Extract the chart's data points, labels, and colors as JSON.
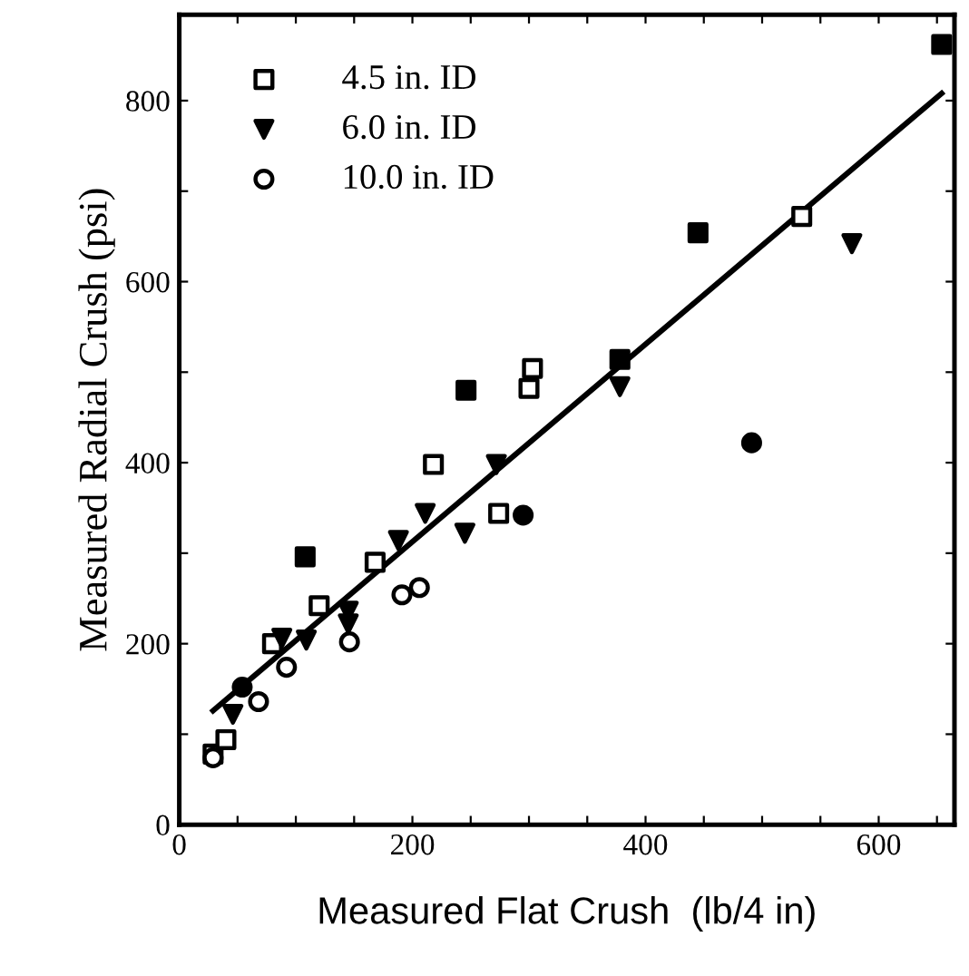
{
  "chart_data": {
    "type": "scatter",
    "xlabel": "Measured Flat Crush  (lb/4 in)",
    "ylabel": "Measured Radial Crush (psi)",
    "xlim": [
      0,
      665
    ],
    "ylim": [
      0,
      895
    ],
    "xticks": [
      0,
      {
        "value": 50,
        "label": null
      },
      {
        "value": 100,
        "label": null
      },
      {
        "value": 150,
        "label": null
      },
      200,
      {
        "value": 250,
        "label": null
      },
      {
        "value": 300,
        "label": null
      },
      {
        "value": 350,
        "label": null
      },
      400,
      {
        "value": 450,
        "label": null
      },
      {
        "value": 500,
        "label": null
      },
      {
        "value": 550,
        "label": null
      },
      600,
      {
        "value": 650,
        "label": null
      }
    ],
    "yticks": [
      0,
      {
        "value": 100,
        "label": null
      },
      200,
      {
        "value": 300,
        "label": null
      },
      400,
      {
        "value": 500,
        "label": null
      },
      600,
      {
        "value": 700,
        "label": null
      },
      800
    ],
    "grid": false,
    "legend": "top left",
    "series": [
      {
        "name": "4.5 in. ID",
        "color": "#000000",
        "marker": "square",
        "x": [
          29,
          40,
          80,
          120,
          168,
          218,
          303,
          300,
          274,
          534
        ],
        "values": [
          78,
          94,
          200,
          242,
          290,
          398,
          504,
          482,
          344,
          672
        ]
      },
      {
        "name": "6.0 in. ID",
        "color": "#000000",
        "marker": "triangle",
        "x": [
          46,
          88,
          109,
          145,
          145,
          188,
          211,
          272,
          245,
          378,
          577
        ],
        "values": [
          122,
          206,
          204,
          236,
          222,
          314,
          344,
          398,
          322,
          484,
          642
        ]
      },
      {
        "name": "10.0 in. ID",
        "color": "#000000",
        "marker": "circle",
        "x": [
          29,
          68,
          92,
          146,
          191,
          206
        ],
        "values": [
          74,
          136,
          174,
          202,
          254,
          262
        ]
      },
      {
        "color": "#000000",
        "marker": "square",
        "x": [
          108,
          246,
          378,
          445,
          654
        ],
        "values": [
          296,
          480,
          514,
          654,
          862
        ]
      },
      {
        "color": "#000000",
        "marker": "circle",
        "x": [
          54,
          295,
          491
        ],
        "values": [
          152,
          342,
          422
        ]
      },
      {
        "type": "line",
        "color": "#000000",
        "line_style": "solid",
        "x": [
          29,
          654
        ],
        "values": [
          126,
          808
        ]
      }
    ]
  }
}
